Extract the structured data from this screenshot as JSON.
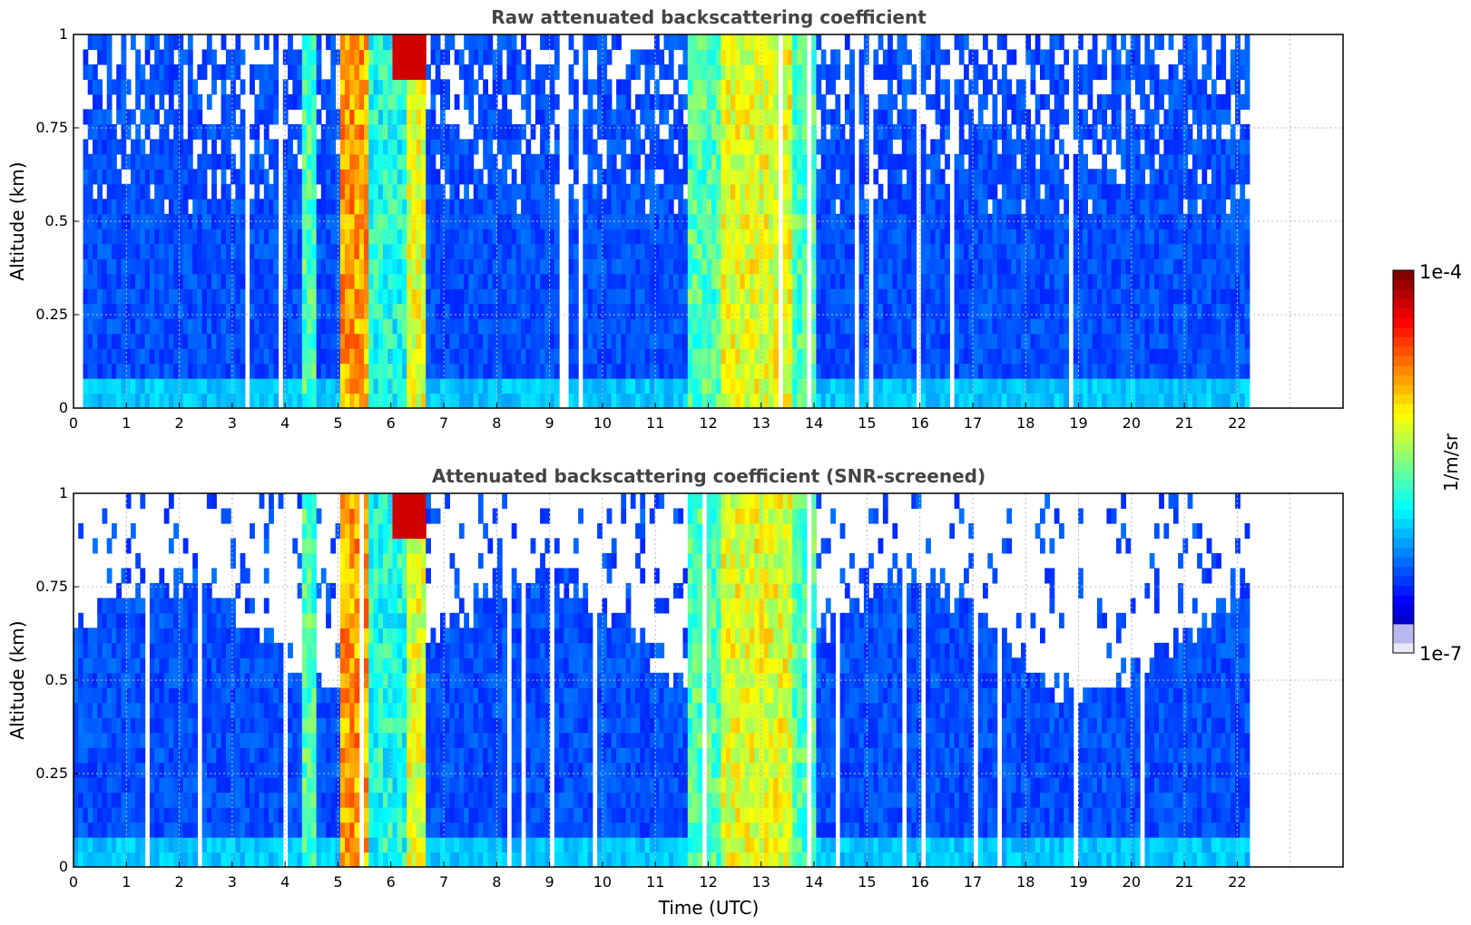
{
  "chart_data": [
    {
      "type": "heatmap",
      "title": "Raw attenuated backscattering coefficient",
      "xlabel": "",
      "ylabel": "Altitude (km)",
      "xlim": [
        0,
        24
      ],
      "ylim": [
        0,
        1
      ],
      "data_extent_hours": 22.2,
      "x_ticks": [
        "0",
        "1",
        "2",
        "3",
        "4",
        "5",
        "6",
        "7",
        "8",
        "9",
        "10",
        "11",
        "12",
        "13",
        "14",
        "15",
        "16",
        "17",
        "18",
        "19",
        "20",
        "21",
        "22"
      ],
      "y_ticks": [
        "0",
        "0.25",
        "0.5",
        "0.75",
        "1"
      ],
      "grid": true,
      "screened": false
    },
    {
      "type": "heatmap",
      "title": "Attenuated backscattering coefficient (SNR-screened)",
      "xlabel": "Time (UTC)",
      "ylabel": "Altitude (km)",
      "xlim": [
        0,
        24
      ],
      "ylim": [
        0,
        1
      ],
      "data_extent_hours": 22.2,
      "x_ticks": [
        "0",
        "1",
        "2",
        "3",
        "4",
        "5",
        "6",
        "7",
        "8",
        "9",
        "10",
        "11",
        "12",
        "13",
        "14",
        "15",
        "16",
        "17",
        "18",
        "19",
        "20",
        "21",
        "22"
      ],
      "y_ticks": [
        "0",
        "0.25",
        "0.5",
        "0.75",
        "1"
      ],
      "grid": true,
      "screened": true
    }
  ],
  "colorbar": {
    "label": "1/m/sr",
    "max_label": "1e-4",
    "min_label": "1e-7",
    "scale": "log",
    "min": 1e-07,
    "max": 0.0001
  }
}
